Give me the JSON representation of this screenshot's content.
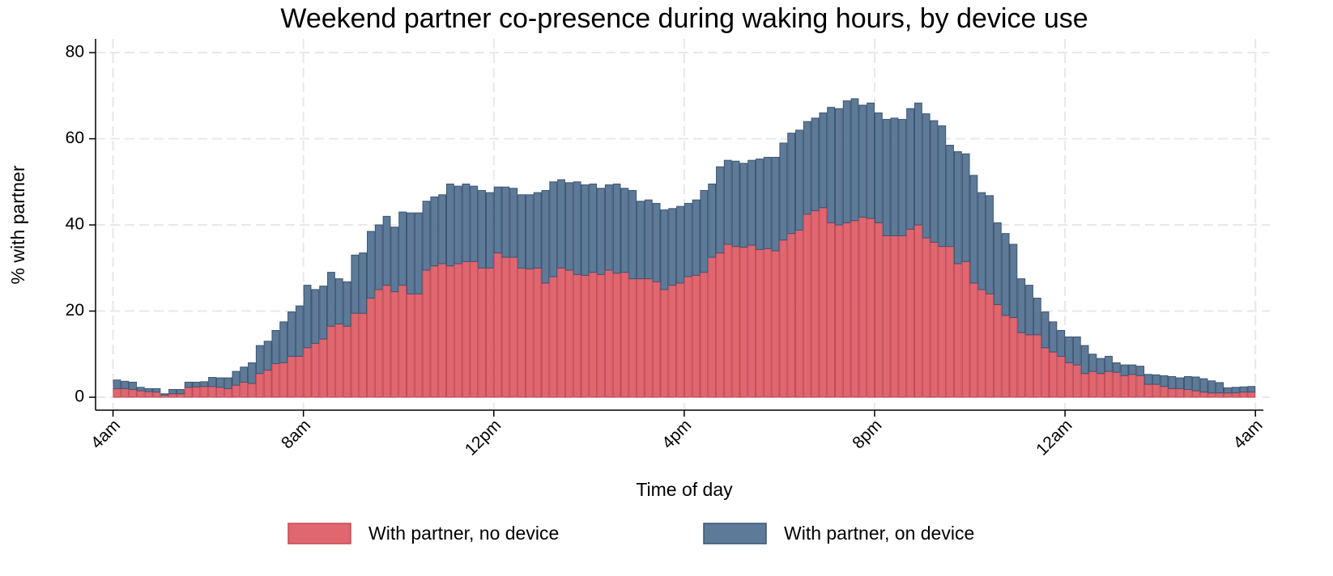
{
  "chart_data": {
    "type": "stacked-bar",
    "title": "Weekend partner co-presence during waking hours, by device use",
    "xlabel": "Time of day",
    "ylabel": "% with partner",
    "x": [
      245,
      255,
      265,
      275,
      285,
      295,
      305,
      315,
      325,
      335,
      345,
      355,
      365,
      375,
      385,
      395,
      405,
      415,
      425,
      435,
      445,
      455,
      465,
      475,
      485,
      495,
      505,
      515,
      525,
      535,
      545,
      555,
      565,
      575,
      585,
      595,
      605,
      615,
      625,
      635,
      645,
      655,
      665,
      675,
      685,
      695,
      705,
      715,
      725,
      735,
      745,
      755,
      765,
      775,
      785,
      795,
      805,
      815,
      825,
      835,
      845,
      855,
      865,
      875,
      885,
      895,
      905,
      915,
      925,
      935,
      945,
      955,
      965,
      975,
      985,
      995,
      1005,
      1015,
      1025,
      1035,
      1045,
      1055,
      1065,
      1075,
      1085,
      1095,
      1105,
      1115,
      1125,
      1135,
      1145,
      1155,
      1165,
      1175,
      1185,
      1195,
      1205,
      1215,
      1225,
      1235,
      1245,
      1255,
      1265,
      1275,
      1285,
      1295,
      1305,
      1315,
      1325,
      1335,
      1345,
      1355,
      1365,
      1375,
      1385,
      1395,
      1405,
      1415,
      1425,
      1435,
      1445,
      1455,
      1465,
      1475,
      1485,
      1495,
      1505,
      1515,
      1525,
      1535,
      1545,
      1555,
      1565,
      1575,
      1585,
      1595,
      1605,
      1615,
      1625,
      1635,
      1645,
      1655,
      1665,
      1675
    ],
    "series": [
      {
        "name": "With partner, no device",
        "color": "#e06670",
        "stroke": "#c24a56",
        "values": [
          2,
          2,
          1.8,
          1.5,
          1.3,
          1.2,
          0.5,
          0.8,
          0.8,
          2.3,
          2.4,
          2.5,
          2.5,
          2.3,
          2,
          2.8,
          3.5,
          3.2,
          5.5,
          6.3,
          7.8,
          8,
          9.5,
          9.5,
          11.5,
          12.5,
          13.5,
          16.5,
          17,
          16.5,
          19.5,
          19.5,
          23,
          25,
          26,
          24.5,
          26,
          24,
          24,
          29.5,
          30.5,
          31,
          30.5,
          31,
          31.5,
          31.5,
          30,
          30,
          33.5,
          32.5,
          32.5,
          30,
          29.8,
          30,
          26.5,
          28,
          30,
          29.5,
          28.5,
          28.3,
          29,
          28.5,
          29.5,
          28.8,
          29,
          27.5,
          27.5,
          27.5,
          26.8,
          25,
          26,
          26.5,
          28,
          28.3,
          29,
          32.5,
          33.5,
          35.5,
          35,
          34.8,
          35.3,
          34.3,
          34.5,
          34,
          36.5,
          38,
          38.8,
          42.5,
          43.3,
          44,
          40.5,
          40,
          40.5,
          41,
          41.8,
          41.5,
          40.5,
          37.5,
          37.5,
          37.5,
          39,
          40,
          37,
          36,
          35,
          35,
          31,
          31.5,
          26.5,
          25,
          24,
          21.5,
          19,
          18.5,
          15,
          14.5,
          14.5,
          11.5,
          10.5,
          9.5,
          8,
          7.5,
          5.5,
          6,
          5.5,
          6,
          5.8,
          5,
          5.3,
          5,
          3,
          3,
          2.5,
          2,
          2,
          1.8,
          1.5,
          1.2,
          1,
          1,
          1,
          1,
          1.2,
          1.2
        ]
      },
      {
        "name": "With partner, on device",
        "color": "#5e7a99",
        "stroke": "#3d5470",
        "values": [
          2,
          1.7,
          1.7,
          0.8,
          0.7,
          0.8,
          0.3,
          1,
          1,
          1.2,
          1.1,
          1.1,
          2.1,
          2.2,
          2.5,
          3.2,
          3.5,
          4.8,
          6.5,
          6.7,
          7.7,
          9.5,
          10.3,
          11.7,
          14.5,
          12.5,
          12.3,
          12.5,
          10.5,
          10.3,
          13.5,
          14,
          15.5,
          15,
          16,
          15,
          17,
          18.8,
          18.8,
          16,
          16,
          16,
          19,
          18,
          18,
          17.5,
          18,
          17.5,
          15.3,
          16.3,
          16,
          17,
          17.2,
          17.5,
          21.5,
          22,
          20.5,
          20.3,
          21.5,
          21,
          20.5,
          20,
          19.8,
          20.7,
          19.5,
          20.5,
          18,
          18.3,
          18.2,
          18.5,
          17.8,
          17.8,
          17,
          17.5,
          19,
          17,
          20,
          19.5,
          19.8,
          19.5,
          19.7,
          21,
          21.2,
          21.7,
          22.5,
          23.3,
          23.2,
          21.5,
          21.5,
          22,
          26.8,
          27,
          28.3,
          28.3,
          26,
          26.8,
          25.5,
          27,
          27.3,
          27,
          28,
          28.3,
          28.8,
          28.2,
          28,
          23.5,
          26,
          25,
          25,
          22.5,
          22.8,
          19,
          19,
          17,
          12.5,
          11.5,
          8.5,
          8.3,
          7,
          6,
          6,
          6.5,
          6.5,
          4,
          3.5,
          3.5,
          2.2,
          2.5,
          2.2,
          2.2,
          2.3,
          2.2,
          2.5,
          2.8,
          2.5,
          3,
          3.2,
          3.1,
          2.8,
          2.4,
          1.2,
          1.3,
          1.2,
          1.3
        ]
      }
    ],
    "xlim": [
      218,
      1690
    ],
    "ylim": [
      -3,
      83.2
    ],
    "xticks": [
      {
        "value": 240,
        "label": "4am"
      },
      {
        "value": 480,
        "label": "8am"
      },
      {
        "value": 720,
        "label": "12pm"
      },
      {
        "value": 960,
        "label": "4pm"
      },
      {
        "value": 1200,
        "label": "8pm"
      },
      {
        "value": 1440,
        "label": "12am"
      },
      {
        "value": 1680,
        "label": "4am"
      }
    ],
    "yticks": [
      0,
      20,
      40,
      60,
      80
    ],
    "grid": true,
    "legend": "bottom"
  }
}
